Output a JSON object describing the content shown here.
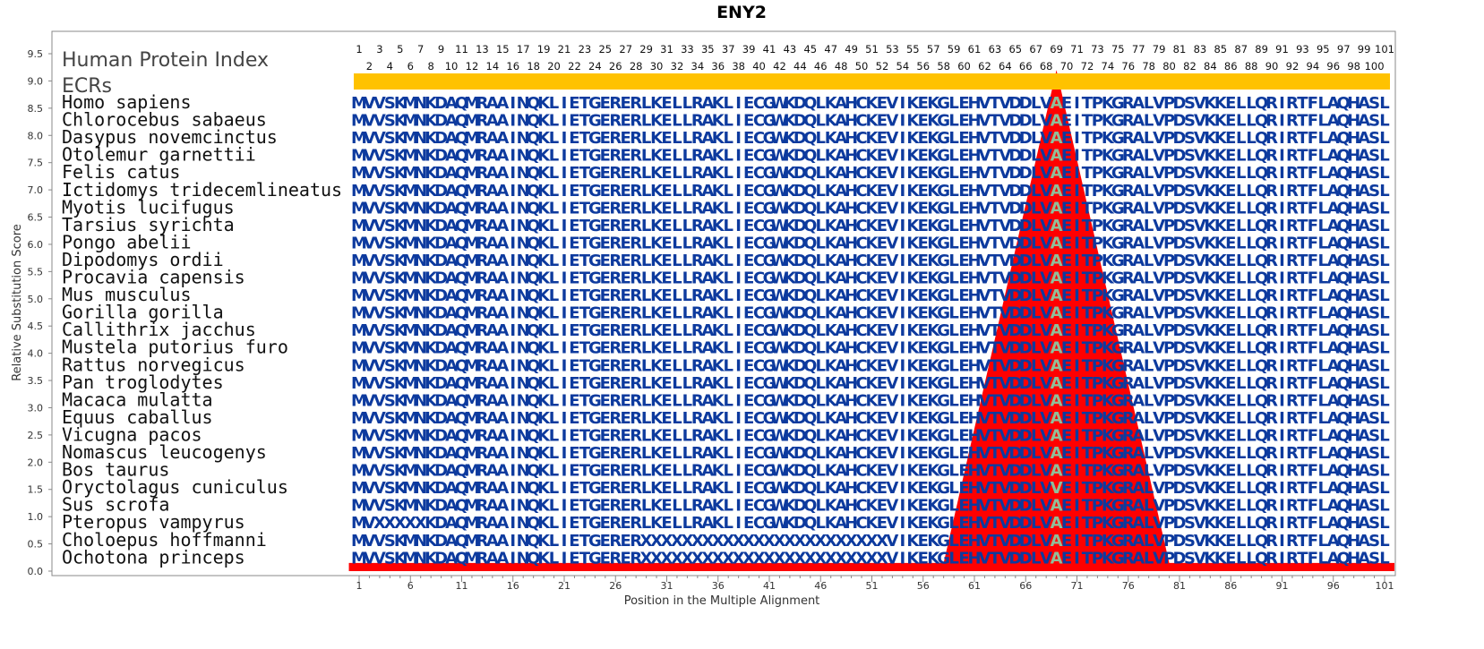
{
  "chart_data": {
    "type": "area",
    "title": "ENY2",
    "xlabel": "Position in the Multiple Alignment",
    "ylabel": "Relative Substitution Score",
    "xlim": [
      1,
      101
    ],
    "ylim": [
      0,
      9.5
    ],
    "yticks": [
      "0.0",
      "0.5",
      "1.0",
      "1.5",
      "2.0",
      "2.5",
      "3.0",
      "3.5",
      "4.0",
      "4.5",
      "5.0",
      "5.5",
      "6.0",
      "6.5",
      "7.0",
      "7.5",
      "8.0",
      "8.5",
      "9.0",
      "9.5"
    ],
    "xticks": [
      "1",
      "6",
      "11",
      "16",
      "21",
      "26",
      "31",
      "36",
      "41",
      "46",
      "51",
      "56",
      "61",
      "66",
      "71",
      "76",
      "81",
      "86",
      "91",
      "96",
      "101"
    ],
    "header_labels": [
      "Human Protein Index",
      "ECRs"
    ],
    "score_series": {
      "color": "#ff0000",
      "x": [
        0,
        58,
        69,
        80,
        102
      ],
      "y": [
        0.15,
        0.15,
        9.2,
        0.15,
        0.15
      ]
    },
    "ecr_bar": {
      "color": "#ffc200",
      "start": 1,
      "end": 101
    },
    "highlight_position": 69,
    "residue_color": "#0d3a9e",
    "highlight_color": "#8fbf9a",
    "species": [
      {
        "name": "Homo sapiens",
        "sequence": "MVVSKMNKDAQMRAAINQKLIETGERERLKELLRAKLIECGWKDQLKAHCKEVIKEKGLEHVTVDDLVAEITPKGRALVPDSVKKELLQRIRTFLAQHASL"
      },
      {
        "name": "Chlorocebus sabaeus",
        "sequence": "MVVSKMNKDAQMRAAINQKLIETGERERLKELLRAKLIECGWKDQLKAHCKEVIKEKGLEHVTVDDLVAEITPKGRALVPDSVKKELLQRIRTFLAQHASL"
      },
      {
        "name": "Dasypus novemcinctus",
        "sequence": "MVVSKMNKDAQMRAAINQKLIETGERERLKELLRAKLIECGWKDQLKAHCKEVIKEKGLEHVTVDDLVAEITPKGRALVPDSVKKELLQRIRTFLAQHASL"
      },
      {
        "name": "Otolemur garnettii",
        "sequence": "MVVSKMNKDAQMRAAINQKLIETGERERLKELLRAKLIECGWKDQLKAHCKEVIKEKGLEHVTVDDLVAEITPKGRALVPDSVKKELLQRIRTFLAQHASL"
      },
      {
        "name": "Felis catus",
        "sequence": "MVVSKMNKDAQMRAAINQKLIETGERERLKELLRAKLIECGWKDQLKAHCKEVIKEKGLEHVTVDDLVAEITPKGRALVPDSVKKELLQRIRTFLAQHASL"
      },
      {
        "name": "Ictidomys tridecemlineatus",
        "sequence": "MVVSKMNKDAQMRAAINQKLIETGERERLKELLRAKLIECGWKDQLKAHCKEVIKEKGLEHVTVDDLVAEITPKGRALVPDSVKKELLQRIRTFLAQHASL"
      },
      {
        "name": "Myotis lucifugus",
        "sequence": "MVVSKMNKDAQMRAAINQKLIETGERERLKELLRAKLIECGWKDQLKAHCKEVIKEKGLEHVTVDDLVAEITPKGRALVPDSVKKELLQRIRTFLAQHASL"
      },
      {
        "name": "Tarsius syrichta",
        "sequence": "MVVSKMNKDAQMRAAINQKLIETGERERLKELLRAKLIECGWKDQLKAHCKEVIKEKGLEHVTVDDLVAEITPKGRALVPDSVKKELLQRIRTFLAQHASL"
      },
      {
        "name": "Pongo abelii",
        "sequence": "MVVSKMNKDAQMRAAINQKLIETGERERLKELLRAKLIECGWKDQLKAHCKEVIKEKGLEHVTVDDLVAEITPKGRALVPDSVKKELLQRIRTFLAQHASL"
      },
      {
        "name": "Dipodomys ordii",
        "sequence": "MVVSKMNKDAQMRAAINQKLIETGERERLKELLRAKLIECGWKDQLKAHCKEVIKEKGLEHVTVDDLVAEITPKGRALVPDSVKKELLQRIRTFLAQHASL"
      },
      {
        "name": "Procavia capensis",
        "sequence": "MVVSKMNKDAQMRAAINQKLIETGERERLKELLRAKLIECGWKDQLKAHCKEVIKEKGLEHVTVDDLVAEITPKGRALVPDSVKKELLQRIRTFLAQHASL"
      },
      {
        "name": "Mus musculus",
        "sequence": "MVVSKMNKDAQMRAAINQKLIETGERERLKELLRAKLIECGWKDQLKAHCKEVIKEKGLEHVTVDDLVAEITPKGRALVPDSVKKELLQRIRTFLAQHASL"
      },
      {
        "name": "Gorilla gorilla",
        "sequence": "MVVSKMNKDAQMRAAINQKLIETGERERLKELLRAKLIECGWKDQLKAHCKEVIKEKGLEHVTVDDLVAEITPKGRALVPDSVKKELLQRIRTFLAQHASL"
      },
      {
        "name": "Callithrix jacchus",
        "sequence": "MVVSKMNKDAQMRAAINQKLIETGERERLKELLRAKLIECGWKDQLKAHCKEVIKEKGLEHVTVDDLVAEITPKGRALVPDSVKKELLQRIRTFLAQHASL"
      },
      {
        "name": "Mustela putorius furo",
        "sequence": "MVVSKMNKDAQMRAAINQKLIETGERERLKELLRAKLIECGWKDQLKAHCKEVIKEKGLEHVTVDDLVAEITPKGRALVPDSVKKELLQRIRTFLAQHASL"
      },
      {
        "name": "Rattus norvegicus",
        "sequence": "MVVSKMNKDAQMRAAINQKLIETGERERLKELLRAKLIECGWKDQLKAHCKEVIKEKGLEHVTVDDLVAEITPKGRALVPDSVKKELLQRIRTFLAQHASL"
      },
      {
        "name": "Pan troglodytes",
        "sequence": "MVVSKMNKDAQMRAAINQKLIETGERERLKELLRAKLIECGWKDQLKAHCKEVIKEKGLEHVTVDDLVAEITPKGRALVPDSVKKELLQRIRTFLAQHASL"
      },
      {
        "name": "Macaca mulatta",
        "sequence": "MVVSKMNKDAQMRAAINQKLIETGERERLKELLRAKLIECGWKDQLKAHCKEVIKEKGLEHVTVDDLVAEITPKGRALVPDSVKKELLQRIRTFLAQHASL"
      },
      {
        "name": "Equus caballus",
        "sequence": "MVVSKMNKDAQMRAAINQKLIETGERERLKELLRAKLIECGWKDQLKAHCKEVIKEKGLEHVTVDDLVAEITPKGRALVPDSVKKELLQRIRTFLAQHASL"
      },
      {
        "name": "Vicugna pacos",
        "sequence": "MVVSKMNKDAQMRAAINQKLIETGERERLKELLRAKLIECGWKDQLKAHCKEVIKEKGLEHVTVDDLVAEITPKGRALVPDSVKKELLQRIRTFLAQHASL"
      },
      {
        "name": "Nomascus leucogenys",
        "sequence": "MVVSKMNKDAQMRAAINQKLIETGERERLKELLRAKLIECGWKDQLKAHCKEVIKEKGLEHVTVDDLVAEITPKGRALVPDSVKKELLQRIRTFLAQHASL"
      },
      {
        "name": "Bos taurus",
        "sequence": "MVVSKMNKDAQMRAAINQKLIETGERERLKELLRAKLIECGWKDQLKAHCKEVIKEKGLEHVTVDDLVAEITPKGRALVPDSVKKELLQRIRTFLAQHASL"
      },
      {
        "name": "Oryctolagus cuniculus",
        "sequence": "MVVSKMNKDAQMRAAINQKLIETGERERLKELLRAKLIECGWKDQLKAHCKEVIKEKGLEHVTVDDLVVEITPKGRALVPDSVKKELLQRIRTFLAQHASL"
      },
      {
        "name": "Sus scrofa",
        "sequence": "MVVSKMNKDAQMRAAINQKLIETGERERLKELLRAKLIECGWKDQLKAHCKEVIKEKGLEHVTVDDLVAEITPKGRALVPDSVKKELLQRIRTFLAQHASL"
      },
      {
        "name": "Pteropus vampyrus",
        "sequence": "MVXXXXXKDAQMRAAINQKLIETGERERLKELLRAKLIECGWKDQLKAHCKEVIKEKGLEHVTVDDLVAEITPKGRALVPDSVKKELLQRIRTFLAQHASL"
      },
      {
        "name": "Choloepus hoffmanni",
        "sequence": "MVVSKMNKDAQMRAAINQKLIETGERERXXXXXXXXXXXXXXXXXXXXXXXXVIKEKGLEHVTVDDLVAEITPKGRALVPDSVKKELLQRIRTFLAQHASL"
      },
      {
        "name": "Ochotona princeps",
        "sequence": "MVVSKMNKDAQMRAAINQKLIETGERERXXXXXXXXXXXXXXXXXXXXXXXXVIKEKGLEHVTVDDLVAEITPKGRALVPDSVKKELLQRIRTFLAQHASL"
      }
    ]
  }
}
